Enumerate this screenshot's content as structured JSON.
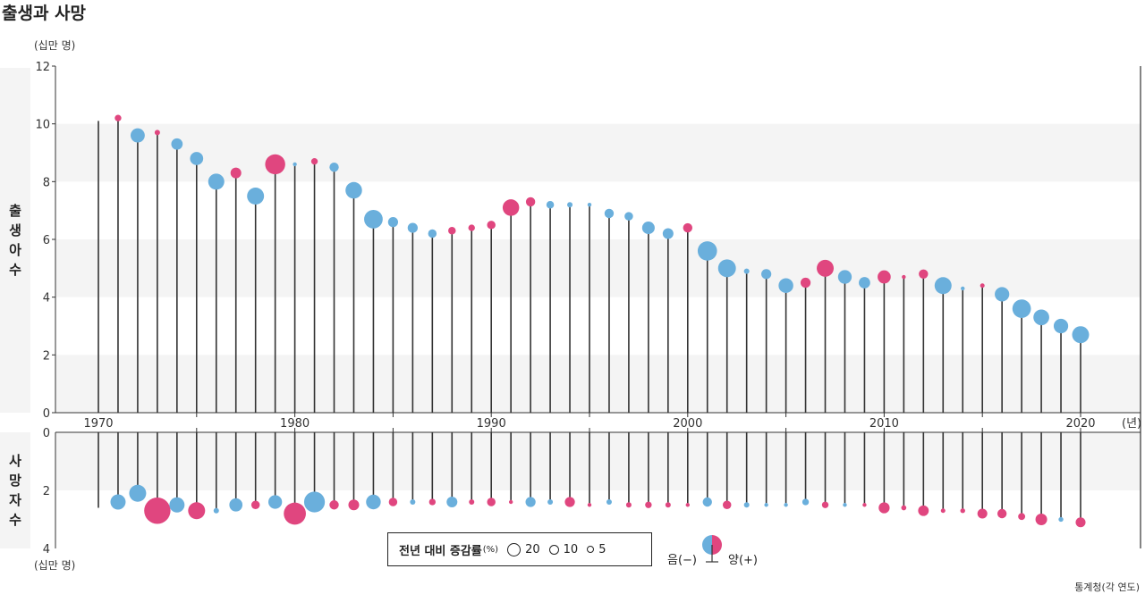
{
  "title": "출생과 사망",
  "unit_top": "(십만 명)",
  "unit_bottom": "(십만 명)",
  "birth_label": [
    "출",
    "생",
    "아",
    "수"
  ],
  "death_label": [
    "사",
    "망",
    "자",
    "수"
  ],
  "source": "통계청(각 연도)",
  "legend": {
    "title": "전년 대비 증감률",
    "pct": "(%)",
    "sizes": [
      "20",
      "10",
      "5"
    ],
    "negative": "음(−)",
    "positive": "양(+)"
  },
  "colors": {
    "negative": "#6aafdc",
    "positive": "#e0467f",
    "stem": "#333333",
    "band": "#f4f4f4"
  },
  "chart_data": {
    "type": "lollipop",
    "x_label": "(년)",
    "x_ticks": [
      "1970",
      "1980",
      "1990",
      "2000",
      "2010",
      "2020"
    ],
    "births": {
      "ylabel": "출생아 수",
      "yticks": [
        "0",
        "2",
        "4",
        "6",
        "8",
        "10",
        "12"
      ],
      "ylim": [
        0,
        12
      ],
      "years": [
        1970,
        1971,
        1972,
        1973,
        1974,
        1975,
        1976,
        1977,
        1978,
        1979,
        1980,
        1981,
        1982,
        1983,
        1984,
        1985,
        1986,
        1987,
        1988,
        1989,
        1990,
        1991,
        1992,
        1993,
        1994,
        1995,
        1996,
        1997,
        1998,
        1999,
        2000,
        2001,
        2002,
        2003,
        2004,
        2005,
        2006,
        2007,
        2008,
        2009,
        2010,
        2011,
        2012,
        2013,
        2014,
        2015,
        2016,
        2017,
        2018,
        2019,
        2020
      ],
      "values": [
        10.1,
        10.2,
        9.6,
        9.7,
        9.3,
        8.8,
        8.0,
        8.3,
        7.5,
        8.6,
        8.6,
        8.7,
        8.5,
        7.7,
        6.7,
        6.6,
        6.4,
        6.2,
        6.3,
        6.4,
        6.5,
        7.1,
        7.3,
        7.2,
        7.2,
        7.2,
        6.9,
        6.8,
        6.4,
        6.2,
        6.4,
        5.6,
        5.0,
        4.9,
        4.8,
        4.4,
        4.5,
        5.0,
        4.7,
        4.5,
        4.7,
        4.7,
        4.8,
        4.4,
        4.3,
        4.4,
        4.1,
        3.6,
        3.3,
        3.0,
        2.7
      ],
      "change_pct": [
        null,
        1.5,
        -7.0,
        1.0,
        -4.5,
        -6.0,
        -9.0,
        4.0,
        -10.0,
        14.0,
        -0.5,
        1.5,
        -3.0,
        -9.5,
        -12.0,
        -3.5,
        -3.5,
        -2.5,
        2.0,
        1.5,
        2.5,
        9.5,
        3.0,
        -2.0,
        -1.0,
        -0.5,
        -3.0,
        -2.5,
        -5.5,
        -4.0,
        3.0,
        -13.0,
        -11.0,
        -1.0,
        -3.5,
        -7.5,
        3.5,
        10.0,
        -6.5,
        -4.5,
        6.0,
        0.5,
        3.0,
        -10.0,
        -0.2,
        0.7,
        -7.3,
        -11.9,
        -8.7,
        -7.3,
        -10.0
      ]
    },
    "deaths": {
      "ylabel": "사망자 수",
      "yticks": [
        "0",
        "2",
        "4"
      ],
      "ylim": [
        0,
        4
      ],
      "years": [
        1970,
        1971,
        1972,
        1973,
        1974,
        1975,
        1976,
        1977,
        1978,
        1979,
        1980,
        1981,
        1982,
        1983,
        1984,
        1985,
        1986,
        1987,
        1988,
        1989,
        1990,
        1991,
        1992,
        1993,
        1994,
        1995,
        1996,
        1997,
        1998,
        1999,
        2000,
        2001,
        2002,
        2003,
        2004,
        2005,
        2006,
        2007,
        2008,
        2009,
        2010,
        2011,
        2012,
        2013,
        2014,
        2015,
        2016,
        2017,
        2018,
        2019,
        2020
      ],
      "values": [
        2.6,
        2.4,
        2.1,
        2.7,
        2.5,
        2.7,
        2.7,
        2.5,
        2.5,
        2.4,
        2.8,
        2.4,
        2.5,
        2.5,
        2.4,
        2.4,
        2.4,
        2.4,
        2.4,
        2.4,
        2.4,
        2.4,
        2.4,
        2.4,
        2.4,
        2.5,
        2.4,
        2.5,
        2.5,
        2.5,
        2.5,
        2.4,
        2.5,
        2.5,
        2.5,
        2.5,
        2.4,
        2.5,
        2.5,
        2.5,
        2.6,
        2.6,
        2.7,
        2.7,
        2.7,
        2.8,
        2.8,
        2.9,
        3.0,
        3.0,
        3.1
      ],
      "change_pct": [
        null,
        -8.0,
        -10.0,
        24.0,
        -8.0,
        10.0,
        -1.0,
        -6.0,
        2.5,
        -6.5,
        17.0,
        -15.0,
        3.0,
        4.0,
        -7.5,
        2.5,
        -1.0,
        1.5,
        -4.0,
        1.0,
        2.5,
        0.5,
        -3.5,
        -1.0,
        3.5,
        0.5,
        -1.0,
        1.0,
        1.5,
        1.0,
        0.2,
        -3.0,
        2.5,
        -1.0,
        -0.5,
        -0.5,
        -1.5,
        1.5,
        -0.5,
        0.5,
        4.2,
        0.9,
        3.9,
        0.7,
        0.8,
        3.4,
        3.0,
        1.7,
        4.7,
        -0.8,
        3.4
      ]
    }
  }
}
